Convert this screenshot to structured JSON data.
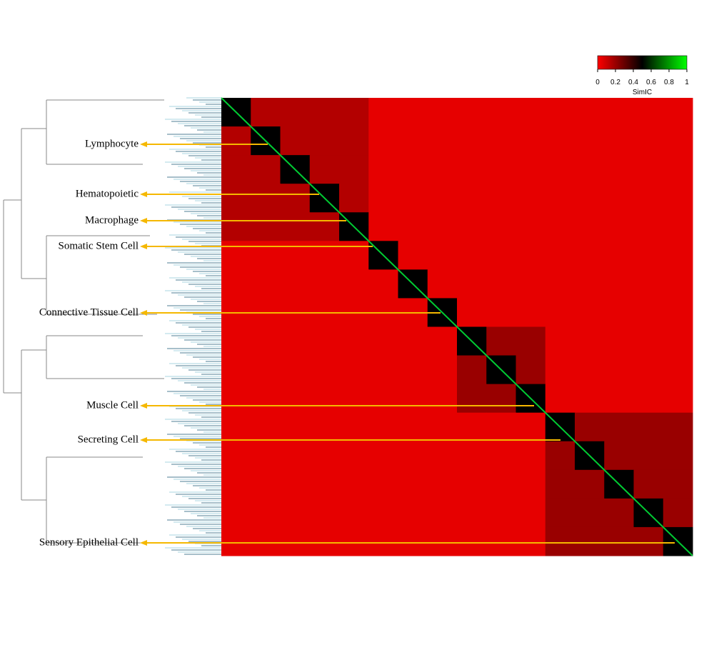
{
  "chart_data": {
    "type": "heatmap",
    "colorbar": {
      "label": "SimIC",
      "lim": [
        0,
        1
      ],
      "ticks": [
        0,
        0.2,
        0.4,
        0.6,
        0.8,
        1
      ],
      "colors": [
        "#ff0000",
        "#000000",
        "#00ff00"
      ]
    },
    "annotations": [
      "Lymphocyte",
      "Hematopoietic",
      "Macrophage",
      "Somatic Stem Cell",
      "Connective Tissue Cell",
      "Muscle Cell",
      "Secreting Cell",
      "Sensory Epithelial  Cell"
    ],
    "arrow_color": "#f5b800",
    "matrix": [
      [
        0.5,
        0.15,
        0.15,
        0.15,
        0.15,
        0.05,
        0.05,
        0.05,
        0.05,
        0.05,
        0.05,
        0.05,
        0.05,
        0.05,
        0.05,
        0.05
      ],
      [
        0.15,
        0.5,
        0.15,
        0.15,
        0.15,
        0.05,
        0.05,
        0.05,
        0.05,
        0.05,
        0.05,
        0.05,
        0.05,
        0.05,
        0.05,
        0.05
      ],
      [
        0.15,
        0.15,
        0.5,
        0.15,
        0.15,
        0.05,
        0.05,
        0.05,
        0.05,
        0.05,
        0.05,
        0.05,
        0.05,
        0.05,
        0.05,
        0.05
      ],
      [
        0.15,
        0.15,
        0.15,
        0.5,
        0.15,
        0.05,
        0.05,
        0.05,
        0.05,
        0.05,
        0.05,
        0.05,
        0.05,
        0.05,
        0.05,
        0.05
      ],
      [
        0.15,
        0.15,
        0.15,
        0.15,
        0.5,
        0.05,
        0.05,
        0.05,
        0.05,
        0.05,
        0.05,
        0.05,
        0.05,
        0.05,
        0.05,
        0.05
      ],
      [
        0.05,
        0.05,
        0.05,
        0.05,
        0.05,
        0.5,
        0.05,
        0.05,
        0.05,
        0.05,
        0.05,
        0.05,
        0.05,
        0.05,
        0.05,
        0.05
      ],
      [
        0.05,
        0.05,
        0.05,
        0.05,
        0.05,
        0.05,
        0.5,
        0.05,
        0.05,
        0.05,
        0.05,
        0.05,
        0.05,
        0.05,
        0.05,
        0.05
      ],
      [
        0.05,
        0.05,
        0.05,
        0.05,
        0.05,
        0.05,
        0.05,
        0.5,
        0.05,
        0.05,
        0.05,
        0.05,
        0.05,
        0.05,
        0.05,
        0.05
      ],
      [
        0.05,
        0.05,
        0.05,
        0.05,
        0.05,
        0.05,
        0.05,
        0.05,
        0.5,
        0.2,
        0.2,
        0.05,
        0.05,
        0.05,
        0.05,
        0.05
      ],
      [
        0.05,
        0.05,
        0.05,
        0.05,
        0.05,
        0.05,
        0.05,
        0.05,
        0.2,
        0.5,
        0.2,
        0.05,
        0.05,
        0.05,
        0.05,
        0.05
      ],
      [
        0.05,
        0.05,
        0.05,
        0.05,
        0.05,
        0.05,
        0.05,
        0.05,
        0.2,
        0.2,
        0.5,
        0.05,
        0.05,
        0.05,
        0.05,
        0.05
      ],
      [
        0.05,
        0.05,
        0.05,
        0.05,
        0.05,
        0.05,
        0.05,
        0.05,
        0.05,
        0.05,
        0.05,
        0.5,
        0.2,
        0.2,
        0.2,
        0.2
      ],
      [
        0.05,
        0.05,
        0.05,
        0.05,
        0.05,
        0.05,
        0.05,
        0.05,
        0.05,
        0.05,
        0.05,
        0.2,
        0.5,
        0.2,
        0.2,
        0.2
      ],
      [
        0.05,
        0.05,
        0.05,
        0.05,
        0.05,
        0.05,
        0.05,
        0.05,
        0.05,
        0.05,
        0.05,
        0.2,
        0.2,
        0.5,
        0.2,
        0.2
      ],
      [
        0.05,
        0.05,
        0.05,
        0.05,
        0.05,
        0.05,
        0.05,
        0.05,
        0.05,
        0.05,
        0.05,
        0.2,
        0.2,
        0.2,
        0.5,
        0.2
      ],
      [
        0.05,
        0.05,
        0.05,
        0.05,
        0.05,
        0.05,
        0.05,
        0.05,
        0.05,
        0.05,
        0.05,
        0.2,
        0.2,
        0.2,
        0.2,
        0.5
      ]
    ]
  }
}
